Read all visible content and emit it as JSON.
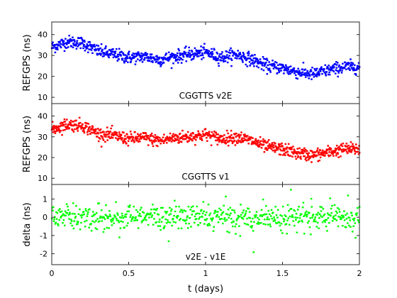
{
  "chart_data": [
    {
      "type": "scatter",
      "title": "",
      "annotation": "CGGTTS v2E",
      "xlabel": "",
      "ylabel": "REFGPS (ns)",
      "xlim": [
        0,
        2
      ],
      "ylim": [
        7,
        46
      ],
      "yticks": [
        "10",
        "20",
        "30",
        "40"
      ],
      "yticks_values": [
        10,
        20,
        30,
        40
      ],
      "color": "#0000ff",
      "series": [
        {
          "trend_x": [
            0,
            0.1,
            0.2,
            0.3,
            0.4,
            0.5,
            0.6,
            0.7,
            0.8,
            0.9,
            1.0,
            1.1,
            1.2,
            1.3,
            1.4,
            1.5,
            1.6,
            1.7,
            1.8,
            1.9,
            2.0
          ],
          "trend_y": [
            34,
            36.5,
            36,
            32,
            30.5,
            29,
            29.5,
            28,
            29.5,
            30.5,
            31.5,
            29,
            30.5,
            28,
            25,
            24,
            22,
            21,
            23,
            24.5,
            24.5
          ],
          "spread": 2.0
        }
      ]
    },
    {
      "type": "scatter",
      "title": "",
      "annotation": "CGGTTS v1",
      "xlabel": "",
      "ylabel": "REFGPS (ns)",
      "xlim": [
        0,
        2
      ],
      "ylim": [
        7,
        46
      ],
      "yticks": [
        "10",
        "20",
        "30",
        "40"
      ],
      "yticks_values": [
        10,
        20,
        30,
        40
      ],
      "color": "#ff0000",
      "series": [
        {
          "trend_x": [
            0,
            0.1,
            0.2,
            0.3,
            0.4,
            0.5,
            0.6,
            0.7,
            0.8,
            0.9,
            1.0,
            1.1,
            1.2,
            1.3,
            1.4,
            1.5,
            1.6,
            1.7,
            1.8,
            1.9,
            2.0
          ],
          "trend_y": [
            33.5,
            36,
            35.5,
            31.5,
            30.5,
            29,
            29.5,
            28,
            29.5,
            30,
            31,
            29,
            30,
            28,
            25,
            24,
            22,
            21,
            22.5,
            24,
            24
          ],
          "spread": 2.0
        }
      ]
    },
    {
      "type": "scatter",
      "title": "",
      "annotation": "v2E - v1E",
      "xlabel": "t (days)",
      "ylabel": "delta (ns)",
      "xlim": [
        0,
        2
      ],
      "ylim": [
        -2.6,
        1.8
      ],
      "yticks": [
        "-2",
        "-1",
        "0",
        "1"
      ],
      "yticks_values": [
        -2,
        -1,
        0,
        1
      ],
      "xticks": [
        "0",
        "0.5",
        "1",
        "1.5",
        "2"
      ],
      "xticks_values": [
        0,
        0.5,
        1,
        1.5,
        2
      ],
      "color": "#00ff00",
      "series": [
        {
          "trend_x": [
            0,
            2
          ],
          "trend_y": [
            0,
            0
          ],
          "spread": 0.35
        }
      ]
    }
  ]
}
